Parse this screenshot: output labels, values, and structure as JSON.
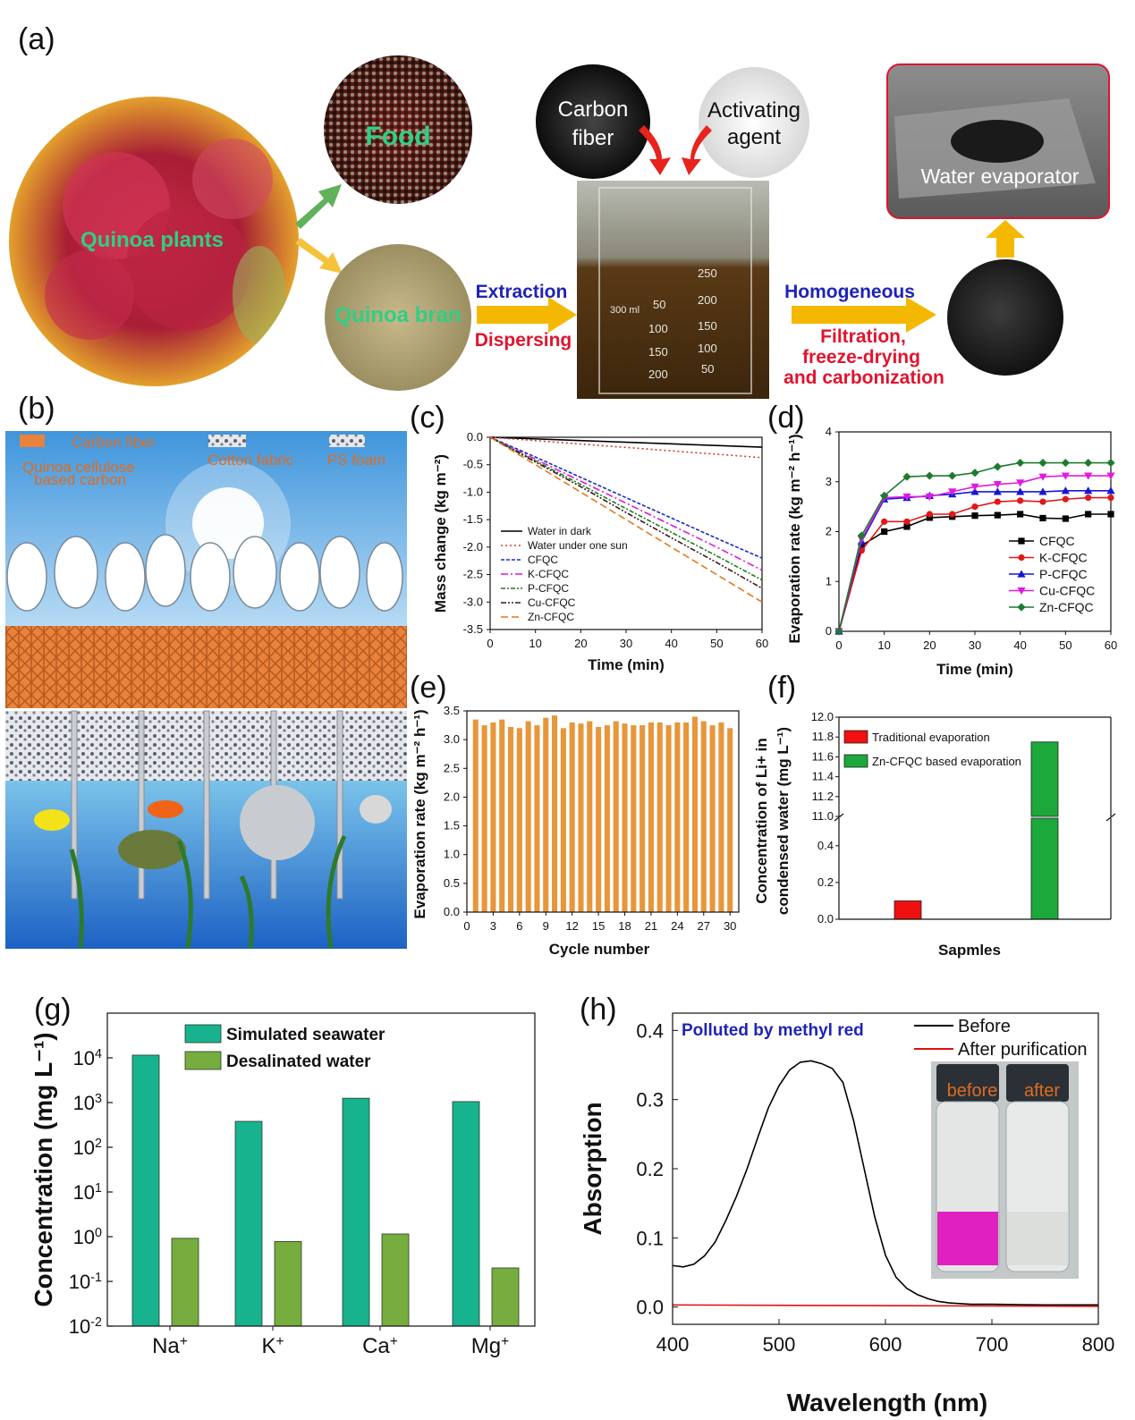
{
  "panel_labels": [
    "(a)",
    "(b)",
    "(c)",
    "(d)",
    "(e)",
    "(f)",
    "(g)",
    "(h)"
  ],
  "colors": {
    "arrow_yellow": "#f5b800",
    "arrow_red": "#e8231c",
    "blue_text": "#1f23b6",
    "red_text": "#e0142e",
    "green_text": "#2fcf84",
    "orange_text": "#e06b20"
  },
  "panel_a": {
    "circle_quinoa": "Quinoa plants",
    "circle_food": "Food",
    "circle_bran": "Quinoa bran",
    "circle_carbon": "Carbon fiber",
    "circle_agent": "Activating agent",
    "step1_top": "Extraction",
    "step1_bottom": "Dispersing",
    "step2_top": "Homogeneous",
    "step2_bottom": "Filtration, freeze-drying and carbonization",
    "evaporator": "Water  evaporator",
    "beaker_marks": [
      "50",
      "100",
      "150",
      "200",
      "250",
      "200",
      "150",
      "100",
      "50",
      "300 ml"
    ]
  },
  "panel_b": {
    "legend_carbon_fiber": "Carbon fiber",
    "legend_quinoa": "Quinoa cellulose based carbon",
    "legend_cotton": "Cotton fabric",
    "legend_ps": "PS foam"
  },
  "chart_data": [
    {
      "id": "c",
      "type": "line",
      "xlabel": "Time (min)",
      "ylabel": "Mass change (kg m⁻²)",
      "xlim": [
        0,
        60
      ],
      "ylim": [
        -3.5,
        0.0
      ],
      "xticks": [
        "0",
        "10",
        "20",
        "30",
        "40",
        "50",
        "60"
      ],
      "yticks": [
        "0.0",
        "-0.5",
        "-1.0",
        "-1.5",
        "-2.0",
        "-2.5",
        "-3.0",
        "-3.5"
      ],
      "series": [
        {
          "name": "Water in dark",
          "color": "#000000",
          "dash": "",
          "x": [
            0,
            60
          ],
          "y": [
            0,
            -0.18
          ]
        },
        {
          "name": "Water under one sun",
          "color": "#d63a2a",
          "dash": "2,3",
          "x": [
            0,
            60
          ],
          "y": [
            0,
            -0.37
          ]
        },
        {
          "name": "CFQC",
          "color": "#1f2bbf",
          "dash": "4,2",
          "x": [
            0,
            10,
            20,
            30,
            40,
            50,
            60
          ],
          "y": [
            0,
            -0.36,
            -0.73,
            -1.1,
            -1.47,
            -1.84,
            -2.2
          ]
        },
        {
          "name": "K-CFQC",
          "color": "#d91ad9",
          "dash": "8,3,2,3",
          "x": [
            0,
            10,
            20,
            30,
            40,
            50,
            60
          ],
          "y": [
            0,
            -0.4,
            -0.8,
            -1.2,
            -1.6,
            -2.0,
            -2.42
          ]
        },
        {
          "name": "P-CFQC",
          "color": "#1e7a1e",
          "dash": "5,2,2,2",
          "x": [
            0,
            10,
            20,
            30,
            40,
            50,
            60
          ],
          "y": [
            0,
            -0.43,
            -0.86,
            -1.3,
            -1.73,
            -2.16,
            -2.6
          ]
        },
        {
          "name": "Cu-CFQC",
          "color": "#3a1a1a",
          "dash": "6,2,2,2,2,2",
          "x": [
            0,
            10,
            20,
            30,
            40,
            50,
            60
          ],
          "y": [
            0,
            -0.45,
            -0.9,
            -1.37,
            -1.83,
            -2.28,
            -2.75
          ]
        },
        {
          "name": "Zn-CFQC",
          "color": "#e07a1f",
          "dash": "8,4",
          "x": [
            0,
            10,
            20,
            30,
            40,
            50,
            60
          ],
          "y": [
            0,
            -0.5,
            -1.0,
            -1.5,
            -2.0,
            -2.5,
            -3.0
          ]
        }
      ]
    },
    {
      "id": "d",
      "type": "line",
      "xlabel": "Time (min)",
      "ylabel": "Evaporation rate (kg m⁻² h⁻¹)",
      "xlim": [
        0,
        60
      ],
      "ylim": [
        0,
        4
      ],
      "xticks": [
        "0",
        "10",
        "20",
        "30",
        "40",
        "50",
        "60"
      ],
      "yticks": [
        "0",
        "1",
        "2",
        "3",
        "4"
      ],
      "x": [
        0,
        5,
        10,
        15,
        20,
        25,
        30,
        35,
        40,
        45,
        50,
        55,
        60
      ],
      "series": [
        {
          "name": "CFQC",
          "color": "#000000",
          "marker": "square",
          "y": [
            0,
            1.72,
            2.0,
            2.1,
            2.28,
            2.3,
            2.32,
            2.33,
            2.35,
            2.27,
            2.26,
            2.35,
            2.35
          ]
        },
        {
          "name": "K-CFQC",
          "color": "#e01818",
          "marker": "circle",
          "y": [
            0,
            1.62,
            2.2,
            2.2,
            2.35,
            2.35,
            2.5,
            2.6,
            2.62,
            2.6,
            2.65,
            2.68,
            2.68
          ]
        },
        {
          "name": "P-CFQC",
          "color": "#1515d8",
          "marker": "triangle",
          "y": [
            0,
            1.8,
            2.65,
            2.68,
            2.72,
            2.75,
            2.8,
            2.8,
            2.8,
            2.8,
            2.82,
            2.82,
            2.82
          ]
        },
        {
          "name": "Cu-CFQC",
          "color": "#e01ae0",
          "marker": "triangle-down",
          "y": [
            0,
            1.85,
            2.68,
            2.7,
            2.7,
            2.8,
            2.9,
            2.95,
            2.98,
            3.1,
            3.12,
            3.12,
            3.12
          ]
        },
        {
          "name": "Zn-CFQC",
          "color": "#1e7a2e",
          "marker": "diamond",
          "y": [
            0,
            1.92,
            2.72,
            3.1,
            3.12,
            3.12,
            3.18,
            3.3,
            3.38,
            3.38,
            3.38,
            3.38,
            3.38
          ]
        }
      ]
    },
    {
      "id": "e",
      "type": "bar",
      "xlabel": "Cycle number",
      "ylabel": "Evaporation rate (kg m⁻² h⁻¹)",
      "xlim": [
        0,
        31
      ],
      "ylim": [
        0,
        3.5
      ],
      "xticks": [
        "0",
        "3",
        "6",
        "9",
        "12",
        "15",
        "18",
        "21",
        "24",
        "27",
        "30"
      ],
      "yticks": [
        "0.0",
        "0.5",
        "1.0",
        "1.5",
        "2.0",
        "2.5",
        "3.0",
        "3.5"
      ],
      "color": "#e8963a",
      "categories": [
        1,
        2,
        3,
        4,
        5,
        6,
        7,
        8,
        9,
        10,
        11,
        12,
        13,
        14,
        15,
        16,
        17,
        18,
        19,
        20,
        21,
        22,
        23,
        24,
        25,
        26,
        27,
        28,
        29,
        30
      ],
      "values": [
        3.35,
        3.25,
        3.3,
        3.35,
        3.22,
        3.2,
        3.32,
        3.25,
        3.38,
        3.42,
        3.2,
        3.3,
        3.28,
        3.32,
        3.22,
        3.25,
        3.32,
        3.28,
        3.25,
        3.25,
        3.3,
        3.3,
        3.25,
        3.3,
        3.3,
        3.4,
        3.32,
        3.25,
        3.3,
        3.2
      ]
    },
    {
      "id": "f",
      "type": "bar",
      "xlabel": "Sapmles",
      "ylabel": "Concentration of Li+ in condensed water (mg L⁻¹)",
      "ylim_lower": [
        0,
        0.55
      ],
      "ylim_upper": [
        11.0,
        12.0
      ],
      "yticks_lower": [
        "0.0",
        "0.2",
        "0.4"
      ],
      "yticks_upper": [
        "11.0",
        "11.2",
        "11.4",
        "11.6",
        "11.8",
        "12.0"
      ],
      "series": [
        {
          "name": "Traditional evaporation",
          "color": "#f01010",
          "value": 0.1
        },
        {
          "name": "Zn-CFQC based evaporation",
          "color": "#1ca83a",
          "value": 11.75
        }
      ]
    },
    {
      "id": "g",
      "type": "bar",
      "ylabel": "Concentration (mg L⁻¹)",
      "yscale": "log",
      "ylim": [
        0.01,
        100000
      ],
      "ytick_exponents": [
        "-2",
        "-1",
        "0",
        "1",
        "2",
        "3",
        "4"
      ],
      "categories": [
        "Na",
        "K",
        "Ca",
        "Mg"
      ],
      "category_sup": "+",
      "series": [
        {
          "name": "Simulated seawater",
          "color": "#17b28e",
          "values": [
            11500,
            380,
            1250,
            1050
          ]
        },
        {
          "name": "Desalinated water",
          "color": "#76ad3e",
          "values": [
            0.92,
            0.78,
            1.15,
            0.2
          ]
        }
      ]
    },
    {
      "id": "h",
      "type": "line",
      "xlabel": "Wavelength (nm)",
      "ylabel": "Absorption",
      "xlim": [
        400,
        800
      ],
      "ylim": [
        -0.025,
        0.425
      ],
      "xticks": [
        "400",
        "500",
        "600",
        "700",
        "800"
      ],
      "yticks": [
        "0.0",
        "0.1",
        "0.2",
        "0.3",
        "0.4"
      ],
      "annotation": "Polluted by methyl red",
      "inset_labels": [
        "before",
        "after"
      ],
      "series": [
        {
          "name": "Before",
          "color": "#000000",
          "x": [
            400,
            410,
            420,
            430,
            440,
            450,
            460,
            470,
            480,
            490,
            500,
            510,
            520,
            530,
            540,
            550,
            560,
            570,
            580,
            590,
            600,
            610,
            620,
            630,
            640,
            650,
            660,
            680,
            700,
            750,
            800
          ],
          "y": [
            0.06,
            0.058,
            0.062,
            0.074,
            0.094,
            0.125,
            0.16,
            0.2,
            0.245,
            0.288,
            0.32,
            0.343,
            0.354,
            0.356,
            0.352,
            0.345,
            0.325,
            0.27,
            0.2,
            0.13,
            0.075,
            0.043,
            0.027,
            0.018,
            0.012,
            0.008,
            0.006,
            0.004,
            0.004,
            0.003,
            0.003
          ]
        },
        {
          "name": "After purification",
          "color": "#e01010",
          "x": [
            400,
            800
          ],
          "y": [
            0.003,
            0.001
          ]
        }
      ]
    }
  ]
}
